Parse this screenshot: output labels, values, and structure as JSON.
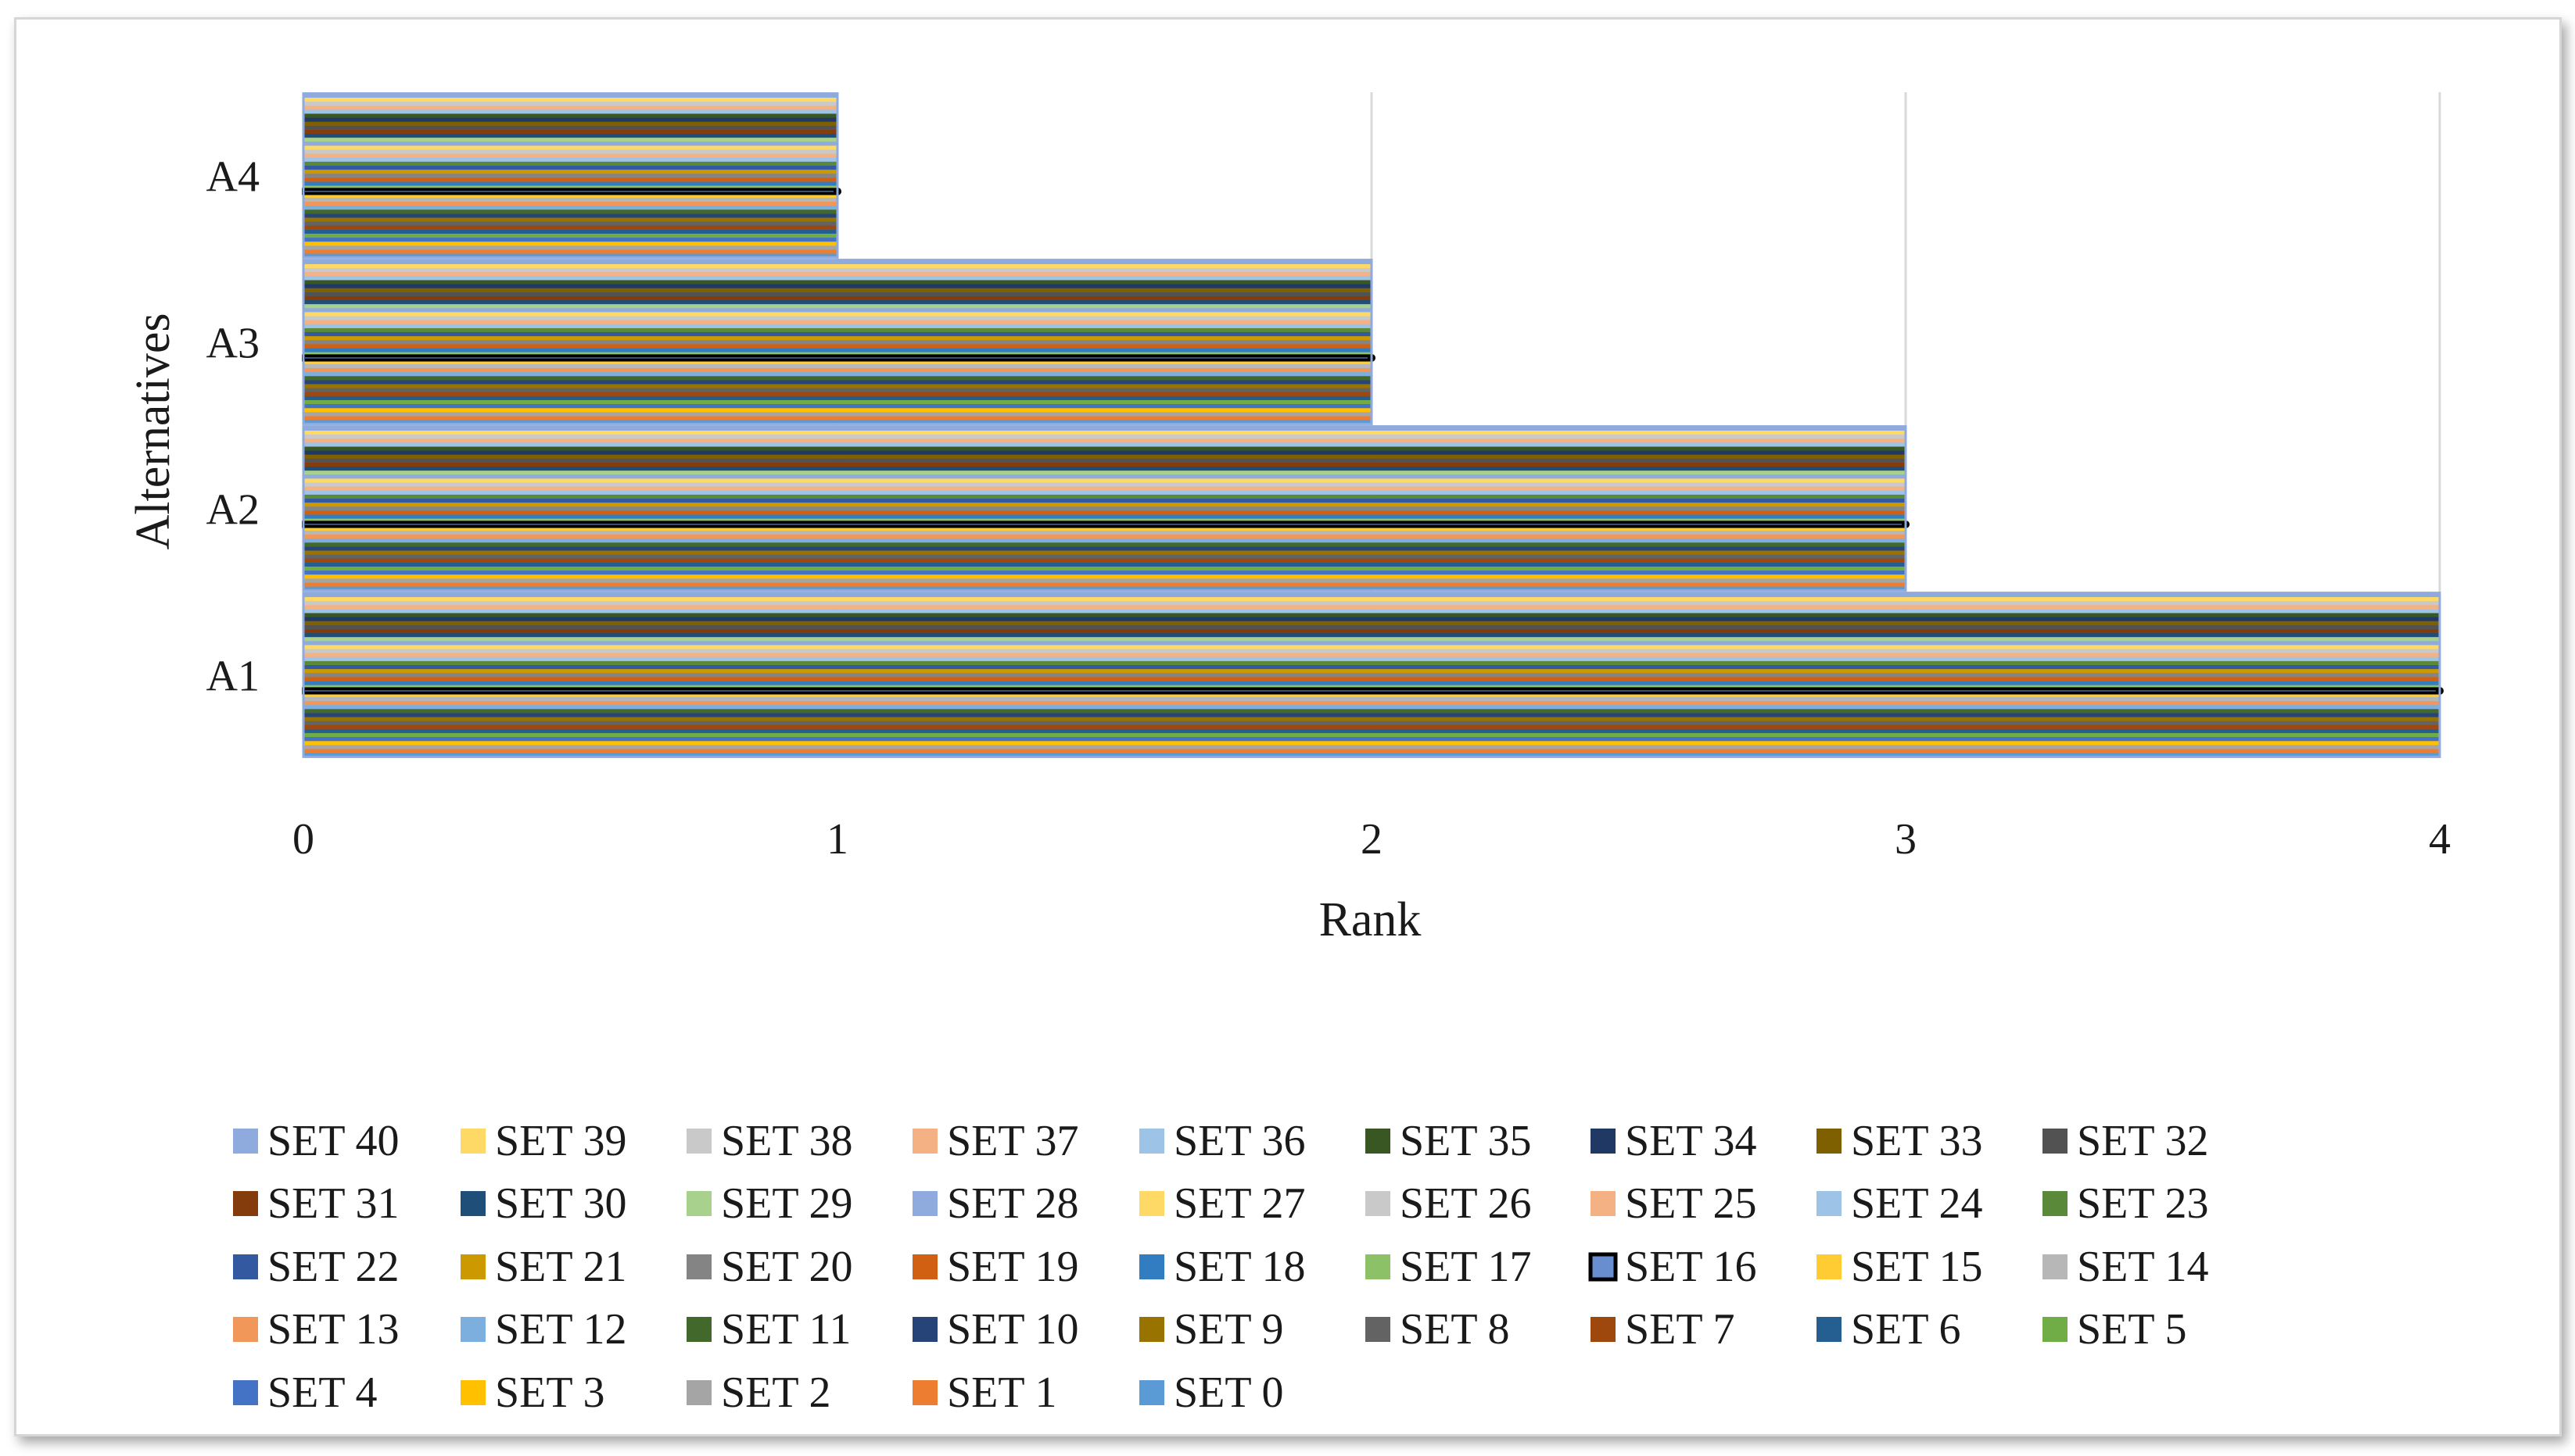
{
  "chart_data": {
    "type": "bar",
    "orientation": "horizontal",
    "title": "",
    "xlabel": "Rank",
    "ylabel": "Alternatives",
    "xlim": [
      0,
      4
    ],
    "x_ticks": [
      "0",
      "1",
      "2",
      "3",
      "4"
    ],
    "grid": true,
    "categories": [
      "A1",
      "A2",
      "A3",
      "A4"
    ],
    "legend_position": "bottom",
    "series": [
      {
        "name": "SET 0",
        "color": "#5b9bd5",
        "values": [
          4,
          3,
          2,
          1
        ]
      },
      {
        "name": "SET 1",
        "color": "#ed7d31",
        "values": [
          4,
          3,
          2,
          1
        ]
      },
      {
        "name": "SET 2",
        "color": "#a5a5a5",
        "values": [
          4,
          3,
          2,
          1
        ]
      },
      {
        "name": "SET 3",
        "color": "#ffc000",
        "values": [
          4,
          3,
          2,
          1
        ]
      },
      {
        "name": "SET 4",
        "color": "#4472c4",
        "values": [
          4,
          3,
          2,
          1
        ]
      },
      {
        "name": "SET 5",
        "color": "#70ad47",
        "values": [
          4,
          3,
          2,
          1
        ]
      },
      {
        "name": "SET 6",
        "color": "#255e91",
        "values": [
          4,
          3,
          2,
          1
        ]
      },
      {
        "name": "SET 7",
        "color": "#9e480e",
        "values": [
          4,
          3,
          2,
          1
        ]
      },
      {
        "name": "SET 8",
        "color": "#636363",
        "values": [
          4,
          3,
          2,
          1
        ]
      },
      {
        "name": "SET 9",
        "color": "#997300",
        "values": [
          4,
          3,
          2,
          1
        ]
      },
      {
        "name": "SET 10",
        "color": "#264478",
        "values": [
          4,
          3,
          2,
          1
        ]
      },
      {
        "name": "SET 11",
        "color": "#43682b",
        "values": [
          4,
          3,
          2,
          1
        ]
      },
      {
        "name": "SET 12",
        "color": "#7cafdd",
        "values": [
          4,
          3,
          2,
          1
        ]
      },
      {
        "name": "SET 13",
        "color": "#f1975a",
        "values": [
          4,
          3,
          2,
          1
        ]
      },
      {
        "name": "SET 14",
        "color": "#b7b7b7",
        "values": [
          4,
          3,
          2,
          1
        ]
      },
      {
        "name": "SET 15",
        "color": "#ffcd33",
        "values": [
          4,
          3,
          2,
          1
        ]
      },
      {
        "name": "SET 16",
        "color": "#698ed0",
        "values": [
          4,
          3,
          2,
          1
        ]
      },
      {
        "name": "SET 17",
        "color": "#8cc168",
        "values": [
          4,
          3,
          2,
          1
        ]
      },
      {
        "name": "SET 18",
        "color": "#327dc2",
        "values": [
          4,
          3,
          2,
          1
        ]
      },
      {
        "name": "SET 19",
        "color": "#d26012",
        "values": [
          4,
          3,
          2,
          1
        ]
      },
      {
        "name": "SET 20",
        "color": "#848484",
        "values": [
          4,
          3,
          2,
          1
        ]
      },
      {
        "name": "SET 21",
        "color": "#cc9a00",
        "values": [
          4,
          3,
          2,
          1
        ]
      },
      {
        "name": "SET 22",
        "color": "#335aa1",
        "values": [
          4,
          3,
          2,
          1
        ]
      },
      {
        "name": "SET 23",
        "color": "#5a8a39",
        "values": [
          4,
          3,
          2,
          1
        ]
      },
      {
        "name": "SET 24",
        "color": "#9dc3e6",
        "values": [
          4,
          3,
          2,
          1
        ]
      },
      {
        "name": "SET 25",
        "color": "#f4b183",
        "values": [
          4,
          3,
          2,
          1
        ]
      },
      {
        "name": "SET 26",
        "color": "#c9c9c9",
        "values": [
          4,
          3,
          2,
          1
        ]
      },
      {
        "name": "SET 27",
        "color": "#ffd966",
        "values": [
          4,
          3,
          2,
          1
        ]
      },
      {
        "name": "SET 28",
        "color": "#8faadc",
        "values": [
          4,
          3,
          2,
          1
        ]
      },
      {
        "name": "SET 29",
        "color": "#a9d18e",
        "values": [
          4,
          3,
          2,
          1
        ]
      },
      {
        "name": "SET 30",
        "color": "#1f4e79",
        "values": [
          4,
          3,
          2,
          1
        ]
      },
      {
        "name": "SET 31",
        "color": "#843c0c",
        "values": [
          4,
          3,
          2,
          1
        ]
      },
      {
        "name": "SET 32",
        "color": "#525252",
        "values": [
          4,
          3,
          2,
          1
        ]
      },
      {
        "name": "SET 33",
        "color": "#7f6000",
        "values": [
          4,
          3,
          2,
          1
        ]
      },
      {
        "name": "SET 34",
        "color": "#203864",
        "values": [
          4,
          3,
          2,
          1
        ]
      },
      {
        "name": "SET 35",
        "color": "#385723",
        "values": [
          4,
          3,
          2,
          1
        ]
      },
      {
        "name": "SET 36",
        "color": "#9dc3e6",
        "values": [
          4,
          3,
          2,
          1
        ]
      },
      {
        "name": "SET 37",
        "color": "#f4b183",
        "values": [
          4,
          3,
          2,
          1
        ]
      },
      {
        "name": "SET 38",
        "color": "#c9c9c9",
        "values": [
          4,
          3,
          2,
          1
        ]
      },
      {
        "name": "SET 39",
        "color": "#ffd966",
        "values": [
          4,
          3,
          2,
          1
        ]
      },
      {
        "name": "SET 40",
        "color": "#8faadc",
        "values": [
          4,
          3,
          2,
          1
        ]
      }
    ],
    "legend_order": [
      "SET 40",
      "SET 39",
      "SET 38",
      "SET 37",
      "SET 36",
      "SET 35",
      "SET 34",
      "SET 33",
      "SET 32",
      "SET 31",
      "SET 30",
      "SET 29",
      "SET 28",
      "SET 27",
      "SET 26",
      "SET 25",
      "SET 24",
      "SET 23",
      "SET 22",
      "SET 21",
      "SET 20",
      "SET 19",
      "SET 18",
      "SET 17",
      "SET 16",
      "SET 15",
      "SET 14",
      "SET 13",
      "SET 12",
      "SET 11",
      "SET 10",
      "SET 9",
      "SET 8",
      "SET 7",
      "SET 6",
      "SET 5",
      "SET 4",
      "SET 3",
      "SET 2",
      "SET 1",
      "SET 0"
    ],
    "highlighted_series": "SET 16"
  }
}
